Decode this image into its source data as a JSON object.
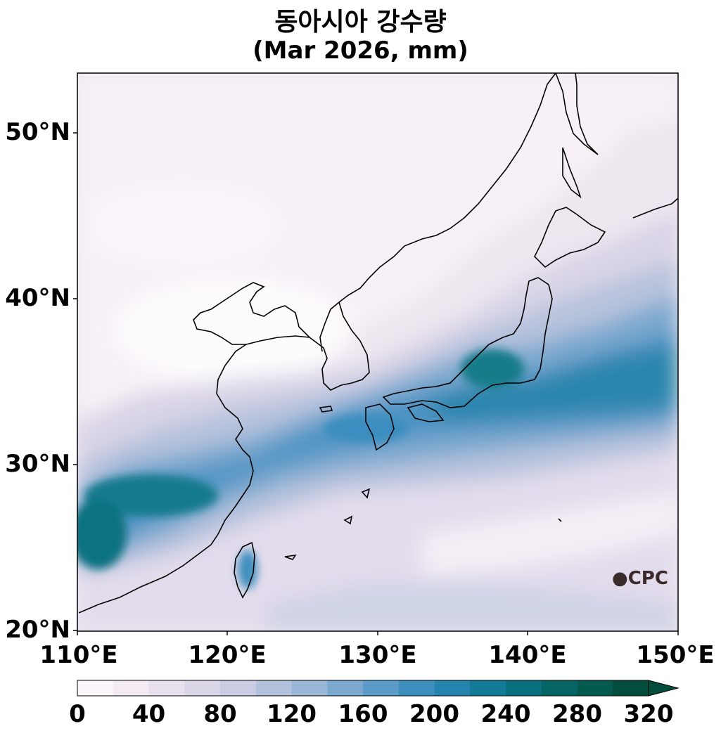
{
  "title": {
    "line1": "동아시아 강수량",
    "line2": "(Mar 2026, mm)"
  },
  "map": {
    "lon_range": [
      110,
      150
    ],
    "lat_range": [
      20,
      53.5
    ],
    "lat_ticks": [
      "50°N",
      "40°N",
      "30°N",
      "20°N"
    ],
    "lon_ticks": [
      "110°E",
      "120°E",
      "130°E",
      "140°E",
      "150°E"
    ],
    "logo_text": "CPC"
  },
  "colorbar": {
    "labels": [
      "0",
      "40",
      "80",
      "120",
      "160",
      "200",
      "240",
      "280",
      "320"
    ],
    "extend": "max",
    "colors": [
      "#fbf4fb",
      "#f3eaf3",
      "#e8dfec",
      "#dad6e8",
      "#c9cce2",
      "#b3c2dc",
      "#9ab6d6",
      "#7aa8cf",
      "#5b9bc8",
      "#3f8fbe",
      "#2484ad",
      "#137a97",
      "#09707e",
      "#056565",
      "#045a4f",
      "#034d3c"
    ]
  },
  "chart_data": {
    "type": "heatmap",
    "variable": "precipitation (mm)",
    "period": "Mar 2026",
    "lon_range": [
      110,
      150
    ],
    "lat_range": [
      20,
      53.5
    ],
    "color_scale": [
      0,
      320
    ],
    "features": [
      {
        "region": "South China / Yangtze basin (110-118E, 25-30N)",
        "value": 260
      },
      {
        "region": "Central Japan (Honshu, ~137E 36N)",
        "value": 240
      },
      {
        "region": "Pacific band south of Japan (140-150E, 33-38N)",
        "value": 200
      },
      {
        "region": "Taiwan",
        "value": 180
      },
      {
        "region": "North China plain / Bohai (114-126E, 36-42N)",
        "value": 5
      },
      {
        "region": "Northeast China / Siberia (120-135E, 45-53N)",
        "value": 15
      },
      {
        "region": "East China Sea (123-130E, 30-33N)",
        "value": 150
      },
      {
        "region": "Subtropical Pacific (130-150E, 20-28N)",
        "value": 60
      }
    ]
  }
}
